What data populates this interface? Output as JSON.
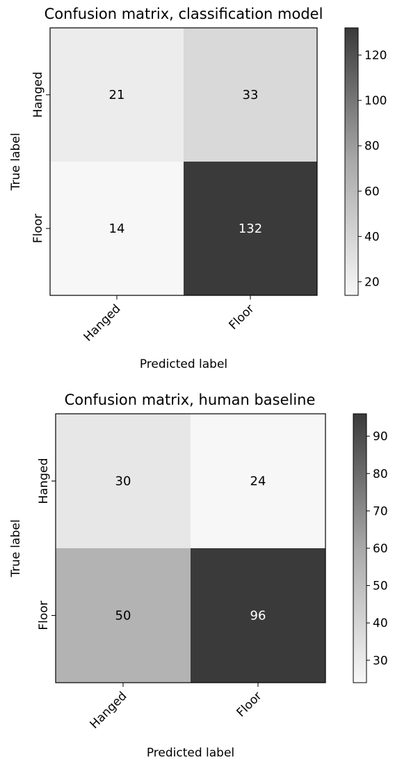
{
  "chart_data": [
    {
      "type": "heatmap",
      "title": "Confusion matrix, classification model",
      "xlabel": "Predicted label",
      "ylabel": "True label",
      "x_categories": [
        "Hanged",
        "Floor"
      ],
      "y_categories": [
        "Hanged",
        "Floor"
      ],
      "values": [
        [
          21,
          33
        ],
        [
          14,
          132
        ]
      ],
      "colorbar": {
        "min": 14,
        "max": 132,
        "ticks": [
          20,
          40,
          60,
          80,
          100,
          120
        ]
      },
      "colormap": "Greys"
    },
    {
      "type": "heatmap",
      "title": "Confusion matrix, human baseline",
      "xlabel": "Predicted label",
      "ylabel": "True label",
      "x_categories": [
        "Hanged",
        "Floor"
      ],
      "y_categories": [
        "Hanged",
        "Floor"
      ],
      "values": [
        [
          30,
          24
        ],
        [
          50,
          96
        ]
      ],
      "colorbar": {
        "min": 24,
        "max": 96,
        "ticks": [
          30,
          40,
          50,
          60,
          70,
          80,
          90
        ]
      },
      "colormap": "Greys"
    }
  ]
}
